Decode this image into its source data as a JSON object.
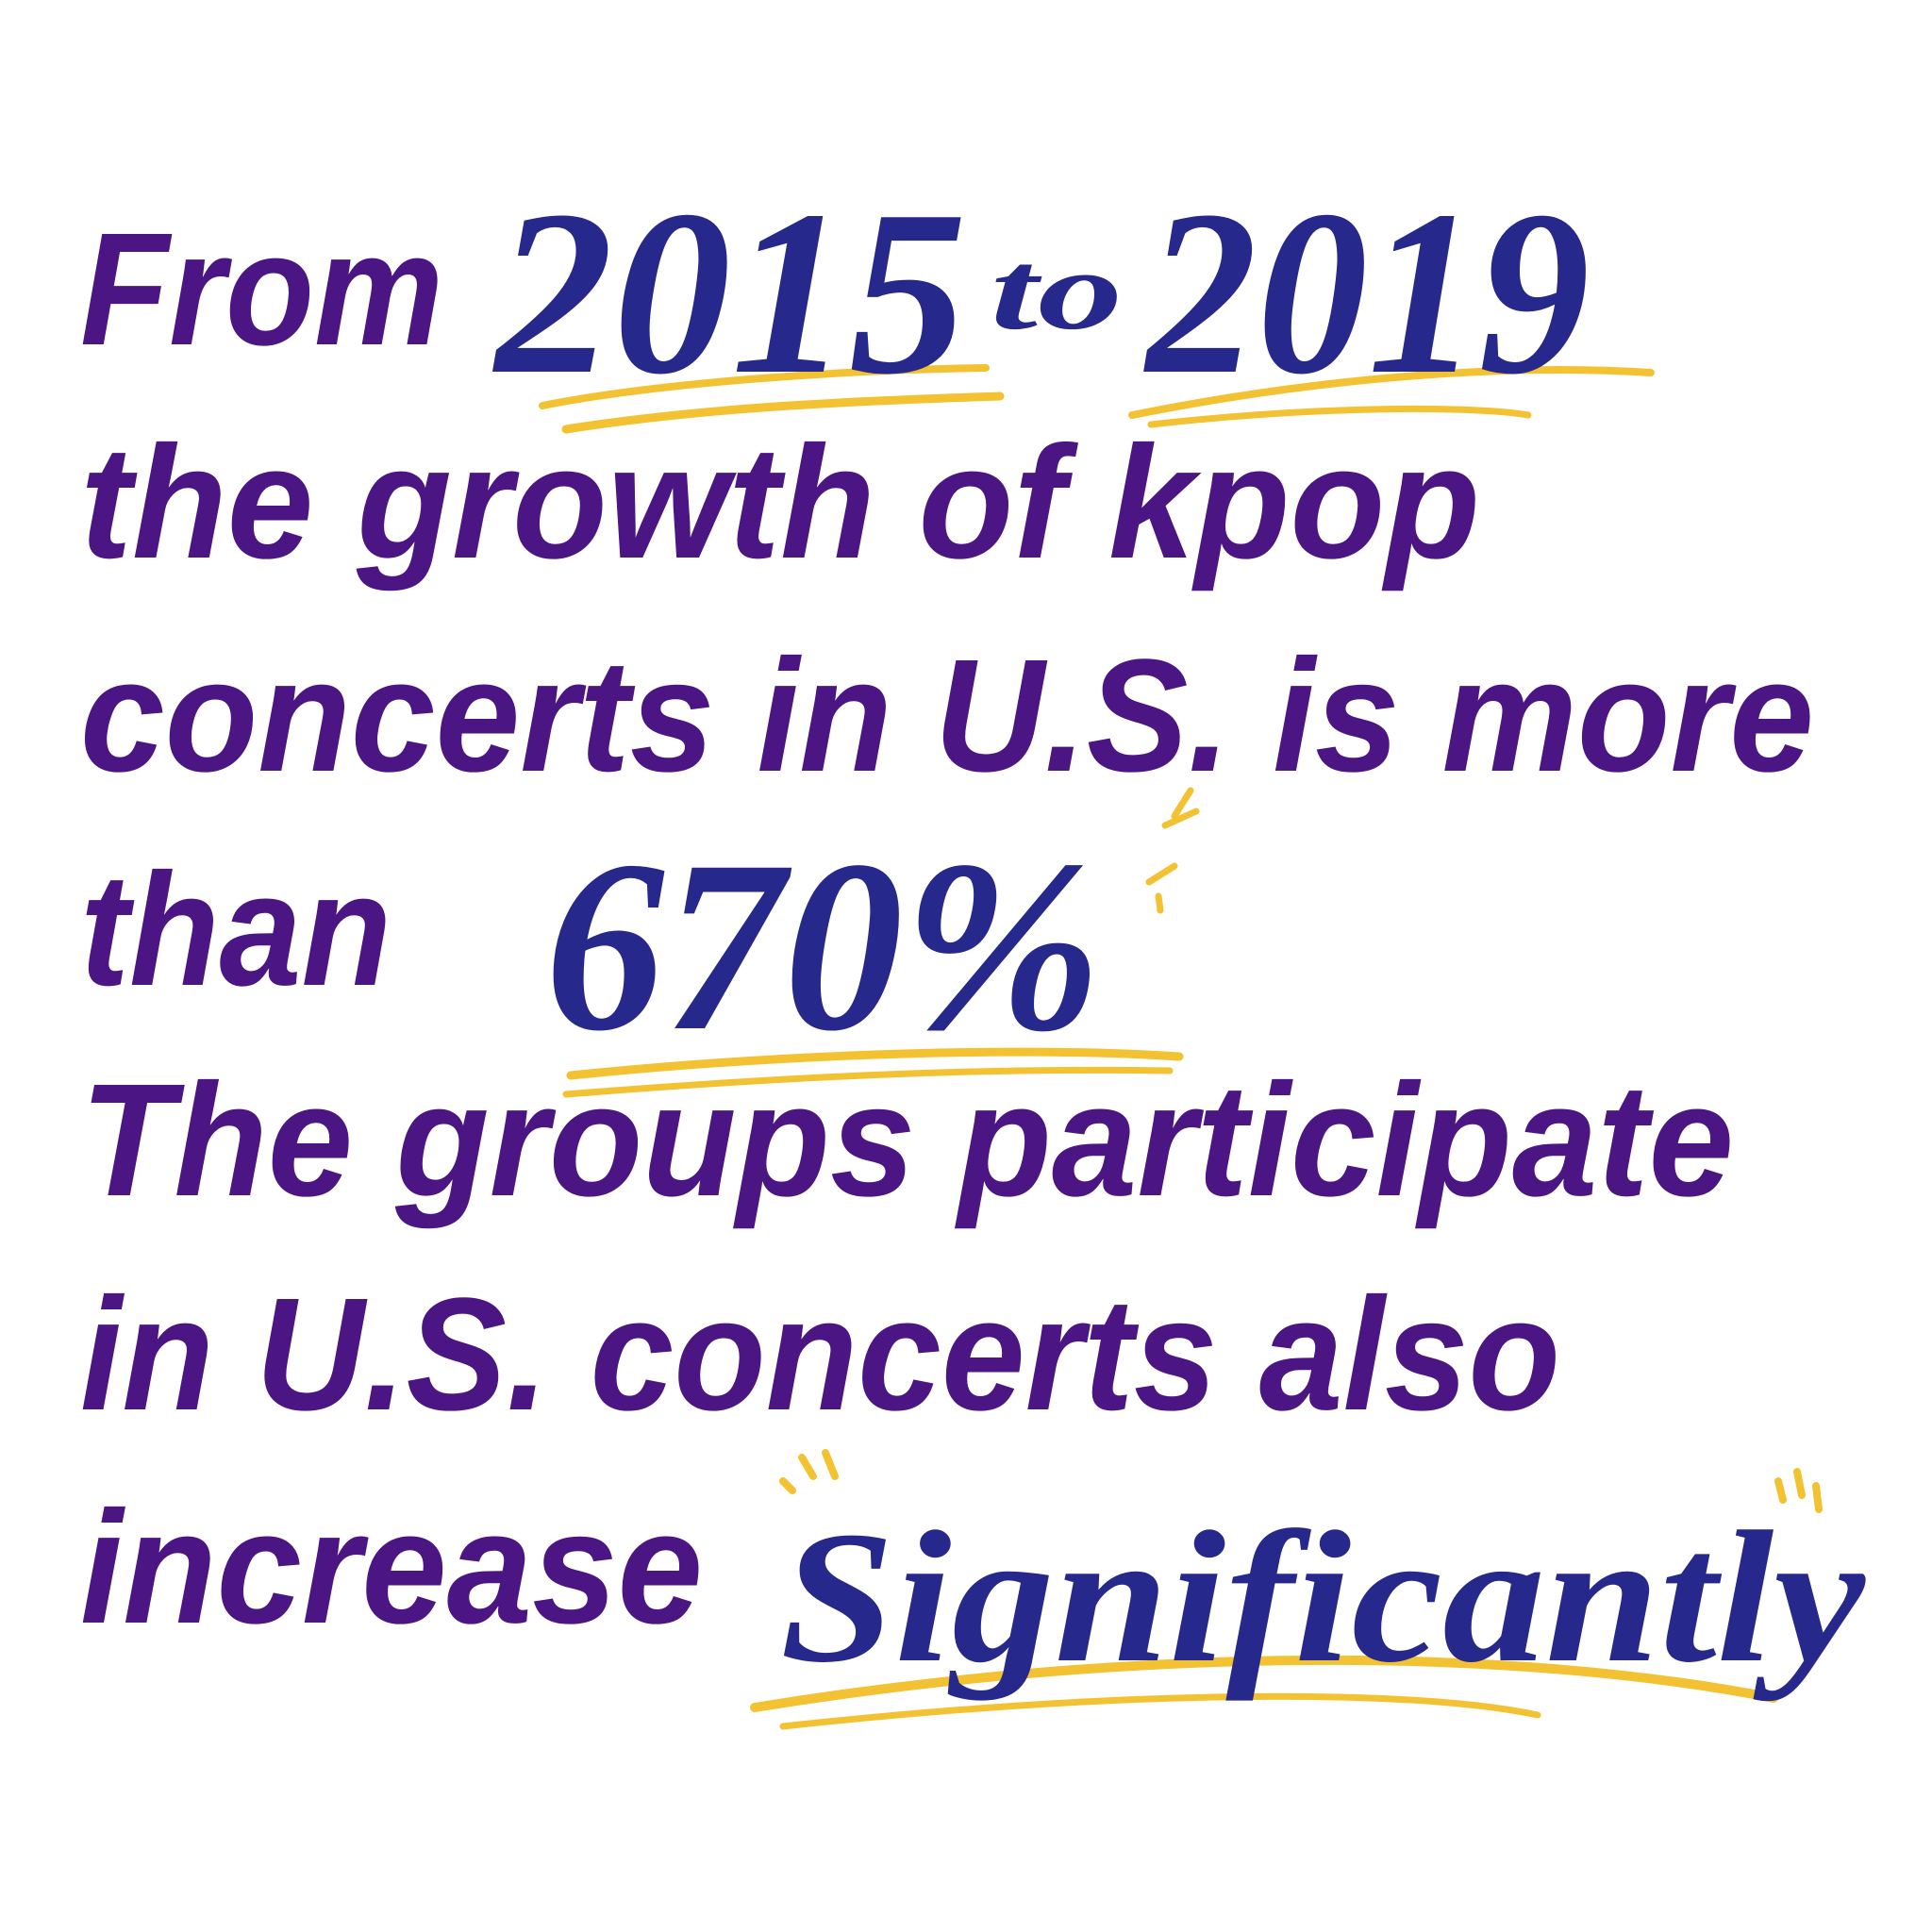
{
  "text": {
    "line1": {
      "from": "From",
      "year_start": "2015",
      "to": "to",
      "year_end": "2019"
    },
    "line2": "the growth of kpop",
    "line3": "concerts in U.S. is more",
    "line4": {
      "than": "than",
      "percent": "670%"
    },
    "line5": "The groups participate",
    "line6": "in U.S. concerts also",
    "line7": {
      "increase": "increase",
      "emphasis": "Significantly"
    }
  }
}
